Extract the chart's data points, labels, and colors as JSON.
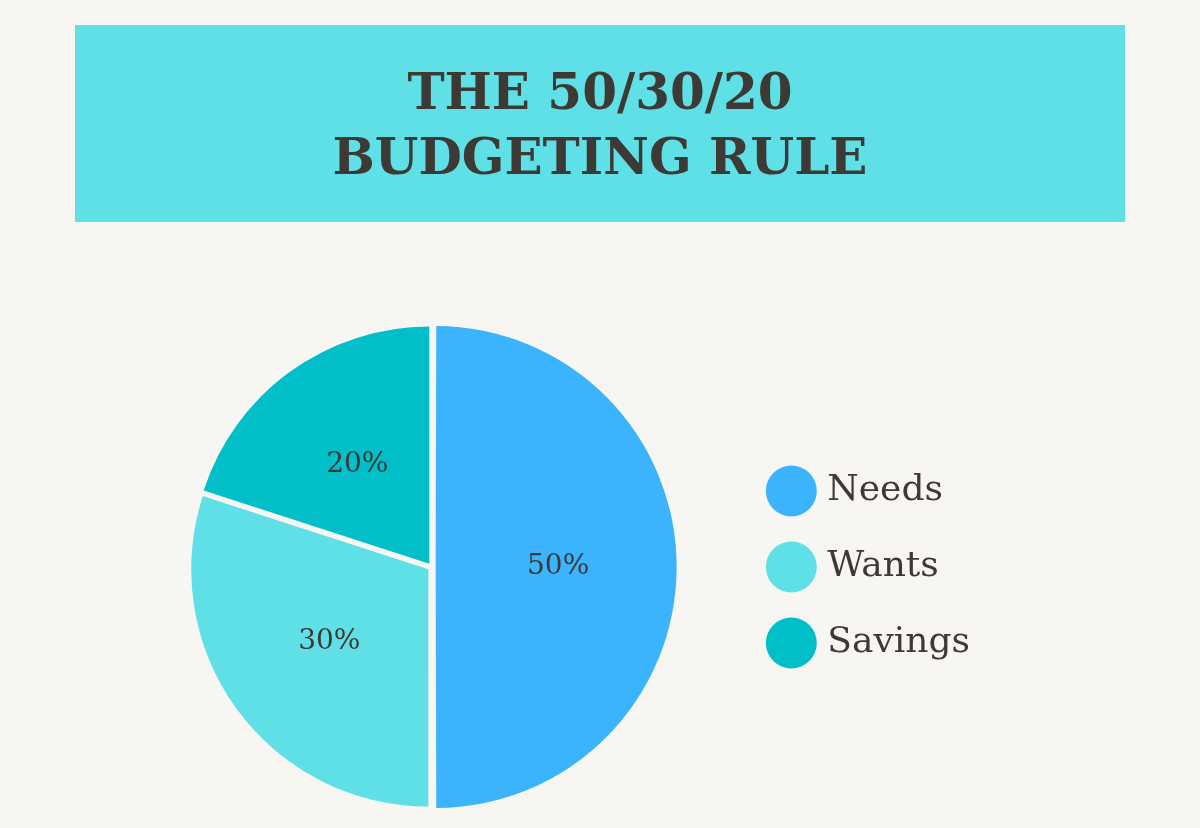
{
  "chart_data": {
    "type": "pie",
    "title": "THE 50/30/20\nBUDGETING RULE",
    "categories": [
      "Needs",
      "Wants",
      "Savings"
    ],
    "values": [
      50,
      30,
      20
    ],
    "colors": [
      "#3bb3fd",
      "#5ee0e6",
      "#00bfc9"
    ],
    "value_labels": [
      "50%",
      "30%",
      "20%"
    ],
    "legend": "right"
  }
}
